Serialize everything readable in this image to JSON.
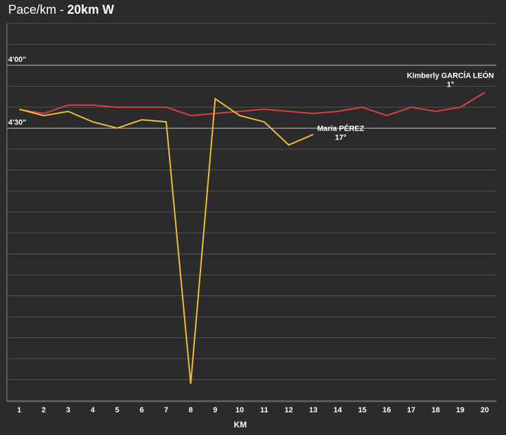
{
  "chart_data": {
    "type": "line",
    "title": "Pace/km - ",
    "title_bold": "20km W",
    "x_label": "KM",
    "categories": [
      "1",
      "2",
      "3",
      "4",
      "5",
      "6",
      "7",
      "8",
      "9",
      "10",
      "11",
      "12",
      "13",
      "14",
      "15",
      "16",
      "17",
      "18",
      "19",
      "20"
    ],
    "ylim": [
      400,
      220
    ],
    "yticks": [
      {
        "value": 240,
        "label": "4'00\""
      },
      {
        "value": 270,
        "label": "4'30\""
      }
    ],
    "ygrid": [
      220,
      230,
      240,
      250,
      260,
      270,
      280,
      290,
      300,
      310,
      320,
      330,
      340,
      350,
      360,
      370,
      380,
      390,
      400
    ],
    "series": [
      {
        "name": "Kimberly GARCÍA LEÓN",
        "rank": "1°",
        "color": "#d9413f",
        "values": [
          261,
          263,
          259,
          259,
          260,
          260,
          260,
          264,
          263,
          262,
          261,
          262,
          263,
          262,
          260,
          264,
          260,
          262,
          260,
          253
        ]
      },
      {
        "name": "María PÉREZ",
        "rank": "17°",
        "color": "#f0bc3c",
        "values": [
          261,
          264,
          262,
          267,
          270,
          266,
          267,
          392,
          256,
          264,
          267,
          278,
          273,
          null,
          null,
          null,
          null,
          null,
          null,
          null
        ]
      }
    ]
  }
}
